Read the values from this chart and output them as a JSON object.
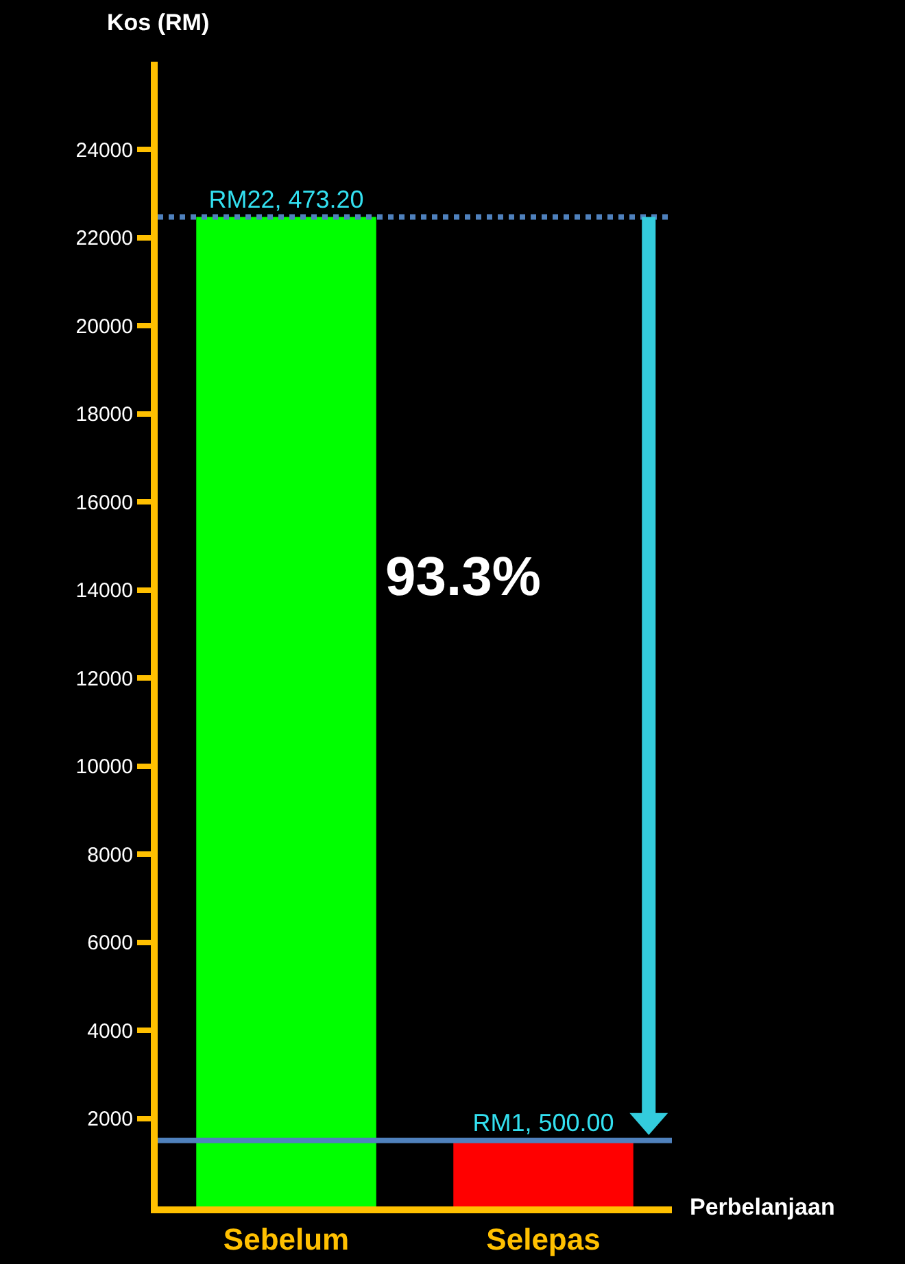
{
  "chart_data": {
    "type": "bar",
    "ylabel": "Kos (RM)",
    "xlabel": "Perbelanjaan",
    "categories": [
      "Sebelum",
      "Selepas"
    ],
    "values": [
      22473.2,
      1500
    ],
    "colors": [
      "#00ff00",
      "#ff0000"
    ],
    "value_labels": [
      "RM22, 473.20",
      "RM1, 500.00"
    ],
    "ylim": [
      0,
      26000
    ],
    "yticks": [
      2000,
      4000,
      6000,
      8000,
      10000,
      12000,
      14000,
      16000,
      18000,
      20000,
      22000,
      24000
    ],
    "ref_lines": [
      {
        "axis": "y",
        "value": 22473.2,
        "color": "#4f81bd",
        "line_style": "dotted"
      },
      {
        "axis": "y",
        "value": 1500,
        "color": "#4f81bd",
        "line_style": "solid"
      }
    ],
    "annotations": [
      "93.3%"
    ]
  }
}
